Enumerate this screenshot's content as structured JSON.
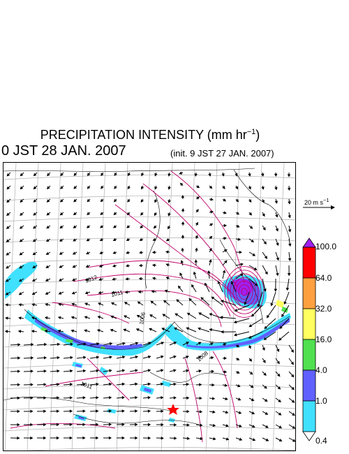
{
  "header": {
    "title_main": "PRECIPITATION INTENSITY (mm hr",
    "title_exp": "−1",
    "title_end": ")",
    "valid_time": "0 JST 28 JAN. 2007",
    "init_time": "(init. 9 JST 27 JAN. 2007)"
  },
  "wind_reference": {
    "label_main": "20 m s",
    "label_exp": "−1"
  },
  "colorbar": {
    "levels": [
      "100.0",
      "64.0",
      "32.0",
      "16.0",
      "4.0",
      "1.0",
      "0.4"
    ],
    "colors": [
      "#a020f0",
      "#ff0000",
      "#ffa040",
      "#ffff60",
      "#50e050",
      "#6060ff",
      "#40e0ff",
      "#ffffff"
    ]
  },
  "isobars": {
    "labels": [
      "1012",
      "1011",
      "1006",
      "1008",
      "1011"
    ],
    "color": "#c0006a"
  },
  "markers": {
    "star_color": "#ff0000"
  }
}
